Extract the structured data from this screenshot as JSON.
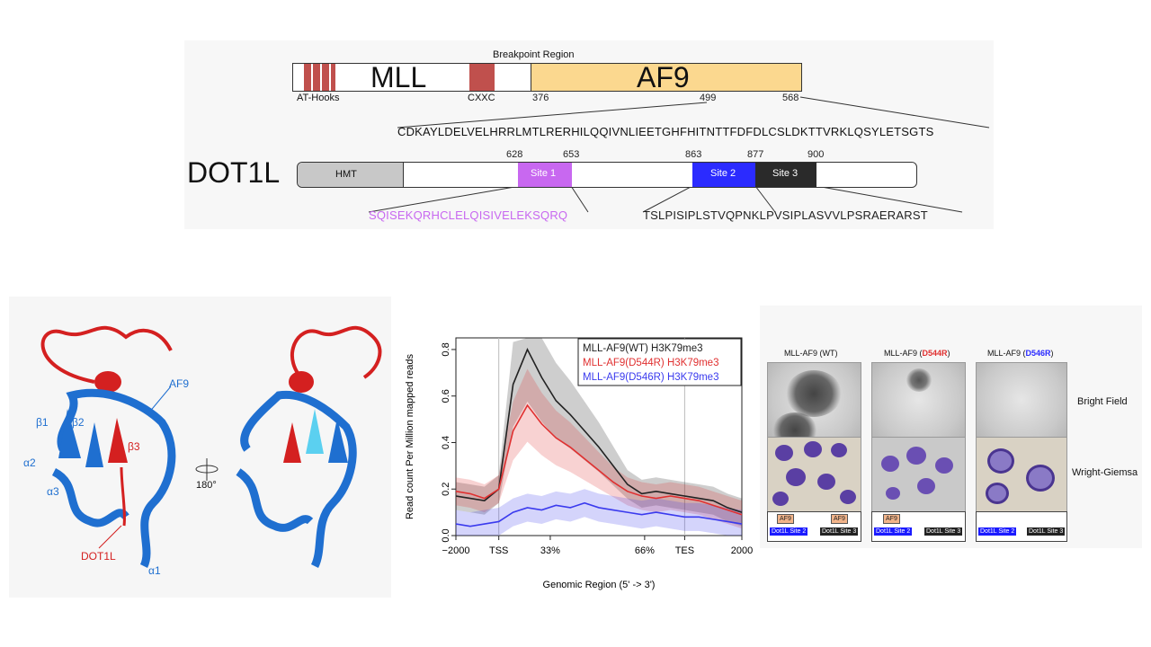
{
  "domain_diagram": {
    "breakpoint_label": "Breakpoint Region",
    "mll_label": "MLL",
    "af9_label": "AF9",
    "at_hooks_label": "AT-Hooks",
    "cxxc_label": "CXXC",
    "pos_376": "376",
    "pos_499": "499",
    "pos_568": "568",
    "af9_sequence": "CDKAYLDELVELHRRLMTLRERHILQQIVNLIEETGHFHITNTTFDFDLCSLDKTTVRKLQSYLETSGTS",
    "dot1l_label": "DOT1L",
    "hmt_label": "HMT",
    "site1_label": "Site 1",
    "site2_label": "Site 2",
    "site3_label": "Site 3",
    "pos_628": "628",
    "pos_653": "653",
    "pos_863": "863",
    "pos_877": "877",
    "pos_900": "900",
    "site1_sequence": "SQISEKQRHCLELQISIVELEKSQRQ",
    "site23_sequence": "TSLPISIPLSTVQPNKLPVSIPLASVVLPSRAERARST",
    "colors": {
      "mll_box": "#c0504d",
      "af9_box": "#fbd88f",
      "hmt": "#c8c8c8",
      "site1": "#c868f0",
      "site2": "#2b2bff",
      "site3": "#2a2a2a"
    }
  },
  "structure": {
    "af9": "AF9",
    "b1": "β1",
    "b2": "β2",
    "b3": "β3",
    "a1": "α1",
    "a2": "α2",
    "a3": "α3",
    "dot1l": "DOT1L",
    "rotation": "180°",
    "colors": {
      "af9": "#1f6fd0",
      "dot1l": "#d42020",
      "site": "#5bd0f0"
    }
  },
  "chart_data": {
    "type": "line",
    "xlabel": "Genomic Region (5' -> 3')",
    "ylabel": "Read count Per Million mapped reads",
    "x_tick_labels": [
      "−2000",
      "TSS",
      "33%",
      "66%",
      "TES",
      "2000"
    ],
    "y_tick_labels": [
      "0.0",
      "0.2",
      "0.4",
      "0.6",
      "0.8"
    ],
    "ylim": [
      0,
      0.85
    ],
    "x": [
      0,
      5,
      10,
      15,
      20,
      25,
      30,
      35,
      40,
      45,
      50,
      55,
      60,
      65,
      70,
      75,
      80,
      85,
      90,
      95,
      100
    ],
    "series": [
      {
        "name": "MLL-AF9(WT) H3K79me3",
        "color": "#222222",
        "values": [
          0.17,
          0.16,
          0.15,
          0.2,
          0.65,
          0.8,
          0.68,
          0.58,
          0.52,
          0.45,
          0.38,
          0.3,
          0.22,
          0.18,
          0.19,
          0.18,
          0.17,
          0.16,
          0.15,
          0.12,
          0.1
        ]
      },
      {
        "name": "MLL-AF9(D544R) H3K79me3",
        "color": "#e03030",
        "values": [
          0.19,
          0.18,
          0.16,
          0.2,
          0.45,
          0.56,
          0.48,
          0.42,
          0.38,
          0.33,
          0.28,
          0.23,
          0.19,
          0.17,
          0.16,
          0.17,
          0.16,
          0.15,
          0.13,
          0.11,
          0.09
        ]
      },
      {
        "name": "MLL-AF9(D546R) H3K79me3",
        "color": "#3a3aee",
        "values": [
          0.05,
          0.04,
          0.05,
          0.06,
          0.1,
          0.12,
          0.11,
          0.13,
          0.12,
          0.14,
          0.12,
          0.11,
          0.1,
          0.09,
          0.1,
          0.09,
          0.08,
          0.08,
          0.07,
          0.06,
          0.05
        ]
      }
    ]
  },
  "cell_panel": {
    "titles": [
      "MLL-AF9 (WT)",
      "MLL-AF9 (",
      "MLL-AF9 ("
    ],
    "mutations": [
      "D544R",
      "D546R"
    ],
    "closing": ")",
    "bright_field": "Bright Field",
    "wright_giemsa": "Wright-Giemsa",
    "af9_tag": "AF9",
    "site2_tag": "Dot1L Site 2",
    "site3_tag": "Dot1L Site 3"
  }
}
